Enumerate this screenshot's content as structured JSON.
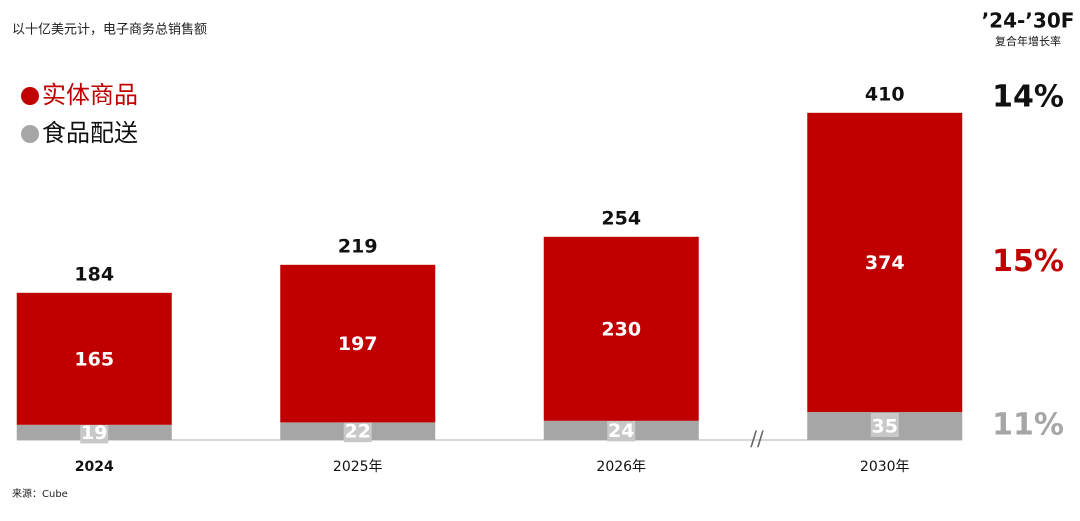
{
  "chart_data": {
    "type": "stacked_bar",
    "title": "以十亿美元计，电子商务总销售额",
    "source": "来源：Cube",
    "categories": [
      "2024",
      "2025年",
      "2026年",
      "2030年"
    ],
    "series": [
      {
        "name": "食品配送",
        "color": "#a6a6a6",
        "values": [
          19,
          22,
          24,
          35
        ]
      },
      {
        "name": "实体商品",
        "color": "#c00000",
        "values": [
          165,
          197,
          230,
          374
        ]
      }
    ],
    "totals": [
      184,
      219,
      254,
      410
    ],
    "ylim": [
      0,
      420
    ],
    "cagr": {
      "title": "’24-’30F",
      "subtitle": "复合年增长率",
      "values": [
        14,
        15,
        11
      ],
      "value_labels": [
        "14%",
        "15%",
        "11%"
      ],
      "colors": [
        "#111111",
        "#c00000",
        "#a6a6a6"
      ]
    }
  }
}
